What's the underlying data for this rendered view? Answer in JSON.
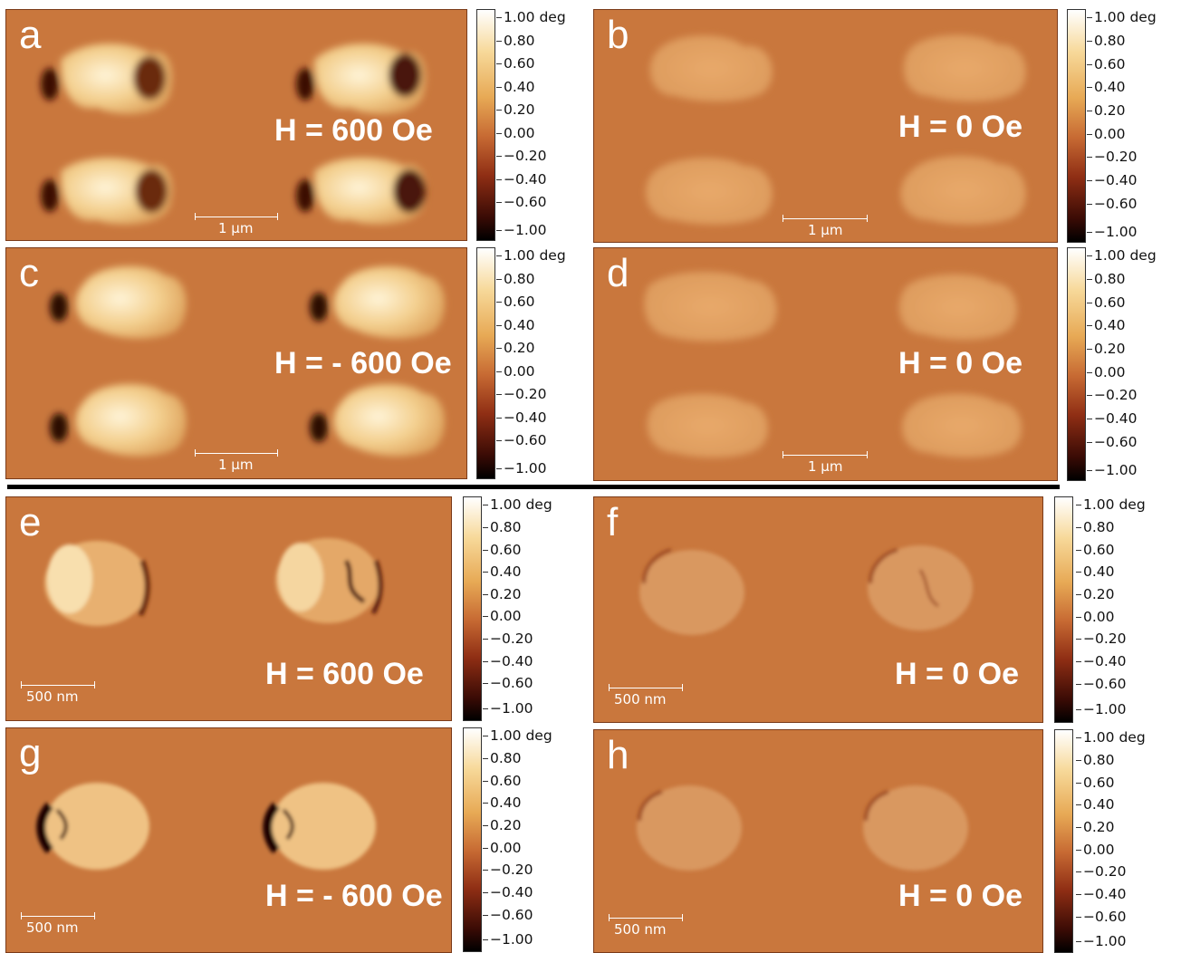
{
  "colorbar_ticks": [
    "1.00 deg",
    "0.80",
    "0.60",
    "0.40",
    "0.20",
    "0.00",
    "−0.20",
    "−0.40",
    "−0.60",
    "−1.00"
  ],
  "panels": {
    "a": {
      "label": "a",
      "field": "H = 600 Oe",
      "scale": "1 µm"
    },
    "b": {
      "label": "b",
      "field": "H = 0 Oe",
      "scale": "1 µm"
    },
    "c": {
      "label": "c",
      "field": "H = - 600 Oe",
      "scale": "1 µm"
    },
    "d": {
      "label": "d",
      "field": "H = 0 Oe",
      "scale": "1 µm"
    },
    "e": {
      "label": "e",
      "field": "H = 600 Oe",
      "scale": "500 nm"
    },
    "f": {
      "label": "f",
      "field": "H = 0 Oe",
      "scale": "500 nm"
    },
    "g": {
      "label": "g",
      "field": "H = - 600 Oe",
      "scale": "500 nm"
    },
    "h": {
      "label": "h",
      "field": "H = 0 Oe",
      "scale": "500 nm"
    }
  },
  "colors": {
    "background": "#c9773d",
    "bright": "#f5d9a0",
    "dark": "#3a0e05"
  }
}
